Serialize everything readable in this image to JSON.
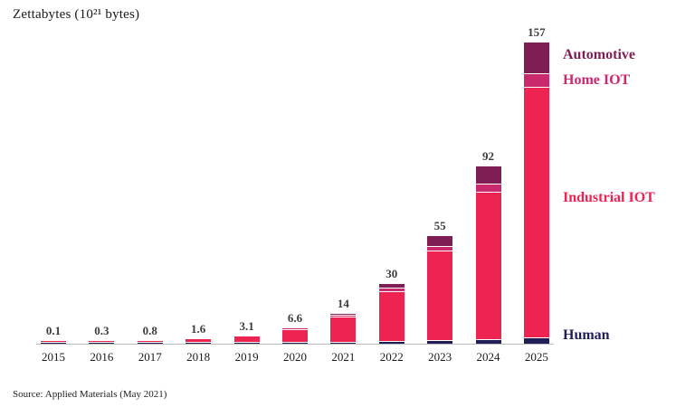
{
  "source": "Source: Applied Materials (May 2021)",
  "chart_data": {
    "type": "bar",
    "stacked": true,
    "title": "Zettabytes (10²¹ bytes)",
    "categories": [
      "2015",
      "2016",
      "2017",
      "2018",
      "2019",
      "2020",
      "2021",
      "2022",
      "2023",
      "2024",
      "2025"
    ],
    "totals": [
      0.1,
      0.3,
      0.8,
      1.6,
      3.1,
      6.6,
      14,
      30,
      55,
      92,
      157
    ],
    "total_labels": [
      "0.1",
      "0.3",
      "0.8",
      "1.6",
      "3.1",
      "6.6",
      "14",
      "30",
      "55",
      "92",
      "157"
    ],
    "series": [
      {
        "name": "Human",
        "color": "#201d57",
        "values": [
          0.05,
          0.1,
          0.15,
          0.2,
          0.3,
          0.4,
          0.5,
          1.0,
          1.5,
          2.0,
          3.0
        ]
      },
      {
        "name": "Industrial IOT",
        "color": "#ed2352",
        "values": [
          0.05,
          0.2,
          0.65,
          1.4,
          2.8,
          6.0,
          12.7,
          25.5,
          46.5,
          77.0,
          131.0
        ]
      },
      {
        "name": "Home IOT",
        "color": "#c9296d",
        "values": [
          0,
          0,
          0,
          0,
          0,
          0.2,
          0.4,
          1.5,
          2.0,
          4.0,
          7.0
        ]
      },
      {
        "name": "Automotive",
        "color": "#7e1e55",
        "values": [
          0,
          0,
          0,
          0,
          0,
          0,
          0.4,
          2.0,
          5.0,
          9.0,
          16.0
        ]
      }
    ],
    "legend_position": "right",
    "ylim": [
      0,
      160
    ],
    "grid": false,
    "xlabel": "",
    "ylabel": "Zettabytes (10²¹ bytes)"
  }
}
